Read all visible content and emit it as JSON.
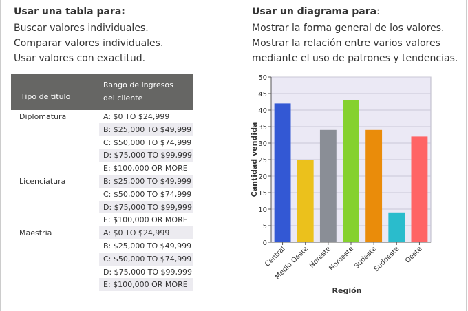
{
  "left": {
    "heading": "Usar una tabla para:",
    "lines": [
      "Buscar valores individuales.",
      "Comparar valores individuales.",
      "Usar valores con exactitud."
    ]
  },
  "right": {
    "heading_bold": "Usar un diagrama para",
    "heading_plain": ":",
    "lines": [
      "Mostrar la forma general de los valores.",
      "Mostrar la relación entre varios valores",
      "mediante el uso de patrones y tendencias."
    ]
  },
  "table": {
    "header_col1": "Tipo de titulo",
    "header_col2": "Rango de ingresos del cliente",
    "rows": [
      {
        "title": "Diplomatura",
        "range": "A: $0 TO $24,999",
        "shade": false
      },
      {
        "title": "",
        "range": "B: $25,000 TO $49,999",
        "shade": true
      },
      {
        "title": "",
        "range": "C: $50,000 TO $74,999",
        "shade": false
      },
      {
        "title": "",
        "range": "D: $75,000 TO $99,999",
        "shade": true
      },
      {
        "title": "",
        "range": "E: $100,000 OR MORE",
        "shade": false
      },
      {
        "title": "Licenciatura",
        "range": "B: $25,000 TO $49,999",
        "shade": true
      },
      {
        "title": "",
        "range": "C: $50,000 TO $74,999",
        "shade": false
      },
      {
        "title": "",
        "range": "D: $75,000 TO $99,999",
        "shade": true
      },
      {
        "title": "",
        "range": "E: $100,000 OR MORE",
        "shade": false
      },
      {
        "title": "Maestria",
        "range": "A: $0 TO $24,999",
        "shade": true
      },
      {
        "title": "",
        "range": "B: $25,000 TO $49,999",
        "shade": false
      },
      {
        "title": "",
        "range": "C: $50,000 TO $74,999",
        "shade": true
      },
      {
        "title": "",
        "range": "D: $75,000 TO $99,999",
        "shade": false
      },
      {
        "title": "",
        "range": "E: $100,000 OR MORE",
        "shade": true
      }
    ]
  },
  "chart_data": {
    "type": "bar",
    "xlabel": "Región",
    "ylabel": "Cantidad vendida",
    "ylim": [
      0,
      50
    ],
    "yticks": [
      0,
      5,
      10,
      15,
      20,
      25,
      30,
      35,
      40,
      45,
      50
    ],
    "categories": [
      "Central",
      "Medio Oeste",
      "Noreste",
      "Noroeste",
      "Sudeste",
      "Sudoeste",
      "Oeste"
    ],
    "values": [
      42,
      25,
      34,
      43,
      34,
      9,
      32
    ],
    "colors": [
      "#3358d4",
      "#ebc11c",
      "#8a8e96",
      "#85d12e",
      "#ea8c0a",
      "#2abccc",
      "#ff6465"
    ],
    "grid": true,
    "background": "#ebe9f5"
  }
}
